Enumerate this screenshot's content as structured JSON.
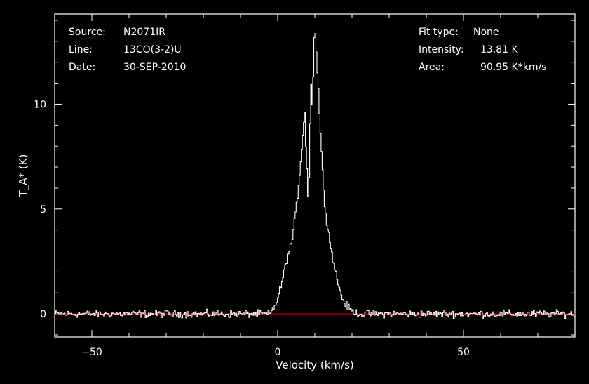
{
  "header_left": [
    {
      "label": "Source:",
      "value": "N2071IR"
    },
    {
      "label": "Line:",
      "value": "13CO(3-2)U"
    },
    {
      "label": "Date:",
      "value": "30-SEP-2010"
    }
  ],
  "header_right": [
    {
      "label": "Fit type:",
      "value": "None"
    },
    {
      "label": "Intensity:",
      "value": "13.81 K"
    },
    {
      "label": "Area:",
      "value": "90.95 K*km/s"
    }
  ],
  "chart_data": {
    "type": "line",
    "title": "",
    "xlabel": "Velocity (km/s)",
    "ylabel": "T_A* (K)",
    "xlim": [
      -60,
      80
    ],
    "ylim": [
      -1.1,
      14.3
    ],
    "xticks": [
      -50,
      0,
      50
    ],
    "yticks": [
      0,
      5,
      10
    ],
    "grid": false,
    "baseline": {
      "y": 0,
      "color": "#cc0000"
    },
    "series": [
      {
        "color": "#ffffff",
        "x": [
          -60,
          -2,
          -1,
          0,
          1,
          2,
          3,
          4,
          5,
          6,
          6.8,
          7.3,
          7.7,
          8.0,
          8.3,
          8.6,
          9.0,
          9.4,
          9.7,
          10.0,
          10.5,
          11.0,
          11.6,
          12.2,
          12.8,
          13.5,
          14.5,
          15.5,
          16.5,
          17.5,
          18.5,
          19.5,
          20.5,
          22,
          80
        ],
        "values": [
          0,
          0,
          0.3,
          0.7,
          1.4,
          2.2,
          2.9,
          3.6,
          5.0,
          6.8,
          8.6,
          9.8,
          7.6,
          6.6,
          5.0,
          7.8,
          11.2,
          9.6,
          12.6,
          13.81,
          12.2,
          10.6,
          8.4,
          6.4,
          5.0,
          4.1,
          3.0,
          2.1,
          1.3,
          0.7,
          0.4,
          0.2,
          0.1,
          0,
          0
        ]
      }
    ]
  }
}
